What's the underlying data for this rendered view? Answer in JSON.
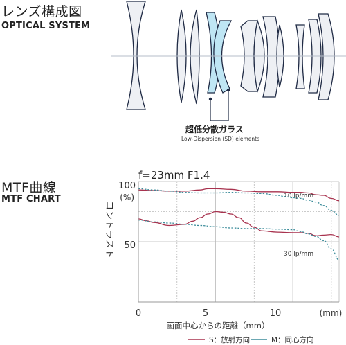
{
  "lens_section": {
    "title_jp": "レンズ構成図",
    "title_en": "OPTICAL SYSTEM",
    "callout_jp": "超低分散ガラス",
    "callout_en": "Low-Dispersion (SD) elements",
    "colors": {
      "lens_stroke": "#1f2a44",
      "lens_fill": "#eef0f4",
      "sd_fill": "#bfe6f4",
      "sd_stroke": "#1f2a44",
      "axis": "#b4bcc8"
    }
  },
  "mtf_section": {
    "title_jp": "MTF曲線",
    "title_en": "MTF CHART"
  },
  "chart_data": {
    "type": "line",
    "title": "f=23mm F1.4",
    "xlabel": "画面中心からの距離（mm）",
    "ylabel": "コントラスト",
    "y_unit_label": "(%)",
    "x_unit_label": "(mm)",
    "xlim": [
      0,
      13
    ],
    "ylim": [
      0,
      100
    ],
    "grid": true,
    "xticks": [
      "0",
      "5",
      "10"
    ],
    "yticks": [
      "100",
      "50"
    ],
    "annotations": [
      "10 lp/mm",
      "30 lp/mm"
    ],
    "legend": {
      "position": "bottom-right",
      "items": [
        {
          "label": "S：放射方向",
          "color": "#a8324e"
        },
        {
          "label": "M：同心方向",
          "color": "#3b8c9a"
        }
      ]
    },
    "series": [
      {
        "name": "S：放射方向",
        "color": "#a8324e",
        "style": "solid",
        "x": [
          0,
          1,
          2,
          3,
          4,
          4.5,
          5,
          6,
          7,
          8,
          9,
          10,
          10.5,
          11,
          11.5,
          12,
          12.5,
          13
        ],
        "values": [
          93,
          92.5,
          92,
          92,
          93,
          94,
          94,
          93.5,
          92,
          91.5,
          91.5,
          91,
          91,
          90.5,
          89,
          88.5,
          86,
          84
        ]
      },
      {
        "name": "M：同心方向",
        "color": "#3b8c9a",
        "style": "dashed",
        "x": [
          0,
          1,
          2,
          3,
          4,
          5,
          6,
          7,
          8,
          9,
          9.5,
          10,
          10.5,
          11,
          11.5,
          12,
          12.5,
          13
        ],
        "values": [
          94,
          93,
          92,
          91,
          90.5,
          90.5,
          91,
          90.5,
          90,
          88.5,
          87.5,
          86.5,
          86,
          84.5,
          83,
          80,
          76,
          72
        ]
      },
      {
        "name": "S：放射方向",
        "color": "#a8324e",
        "style": "solid",
        "x": [
          0,
          0.5,
          1,
          2,
          3,
          3.5,
          4,
          4.5,
          5,
          5.5,
          6,
          6.5,
          7,
          7.5,
          8,
          9,
          10,
          10.5,
          11,
          11.5,
          12,
          12.5,
          13
        ],
        "values": [
          69,
          67.5,
          66,
          63.5,
          64.5,
          67,
          70,
          73,
          75,
          74.5,
          73,
          70,
          65.5,
          62,
          59,
          58,
          57.5,
          57.5,
          57,
          55,
          55.5,
          56,
          54
        ]
      },
      {
        "name": "M：同心方向",
        "color": "#3b8c9a",
        "style": "dashed",
        "x": [
          0,
          1,
          2,
          3,
          4,
          5,
          6,
          7,
          8,
          9,
          10,
          10.5,
          11,
          11.5,
          12,
          12.5,
          13
        ],
        "values": [
          68,
          66.5,
          65.5,
          64.5,
          63.5,
          62.5,
          61.5,
          61,
          61,
          60.5,
          60,
          58.5,
          56.5,
          54.5,
          51,
          44,
          35
        ]
      }
    ]
  }
}
